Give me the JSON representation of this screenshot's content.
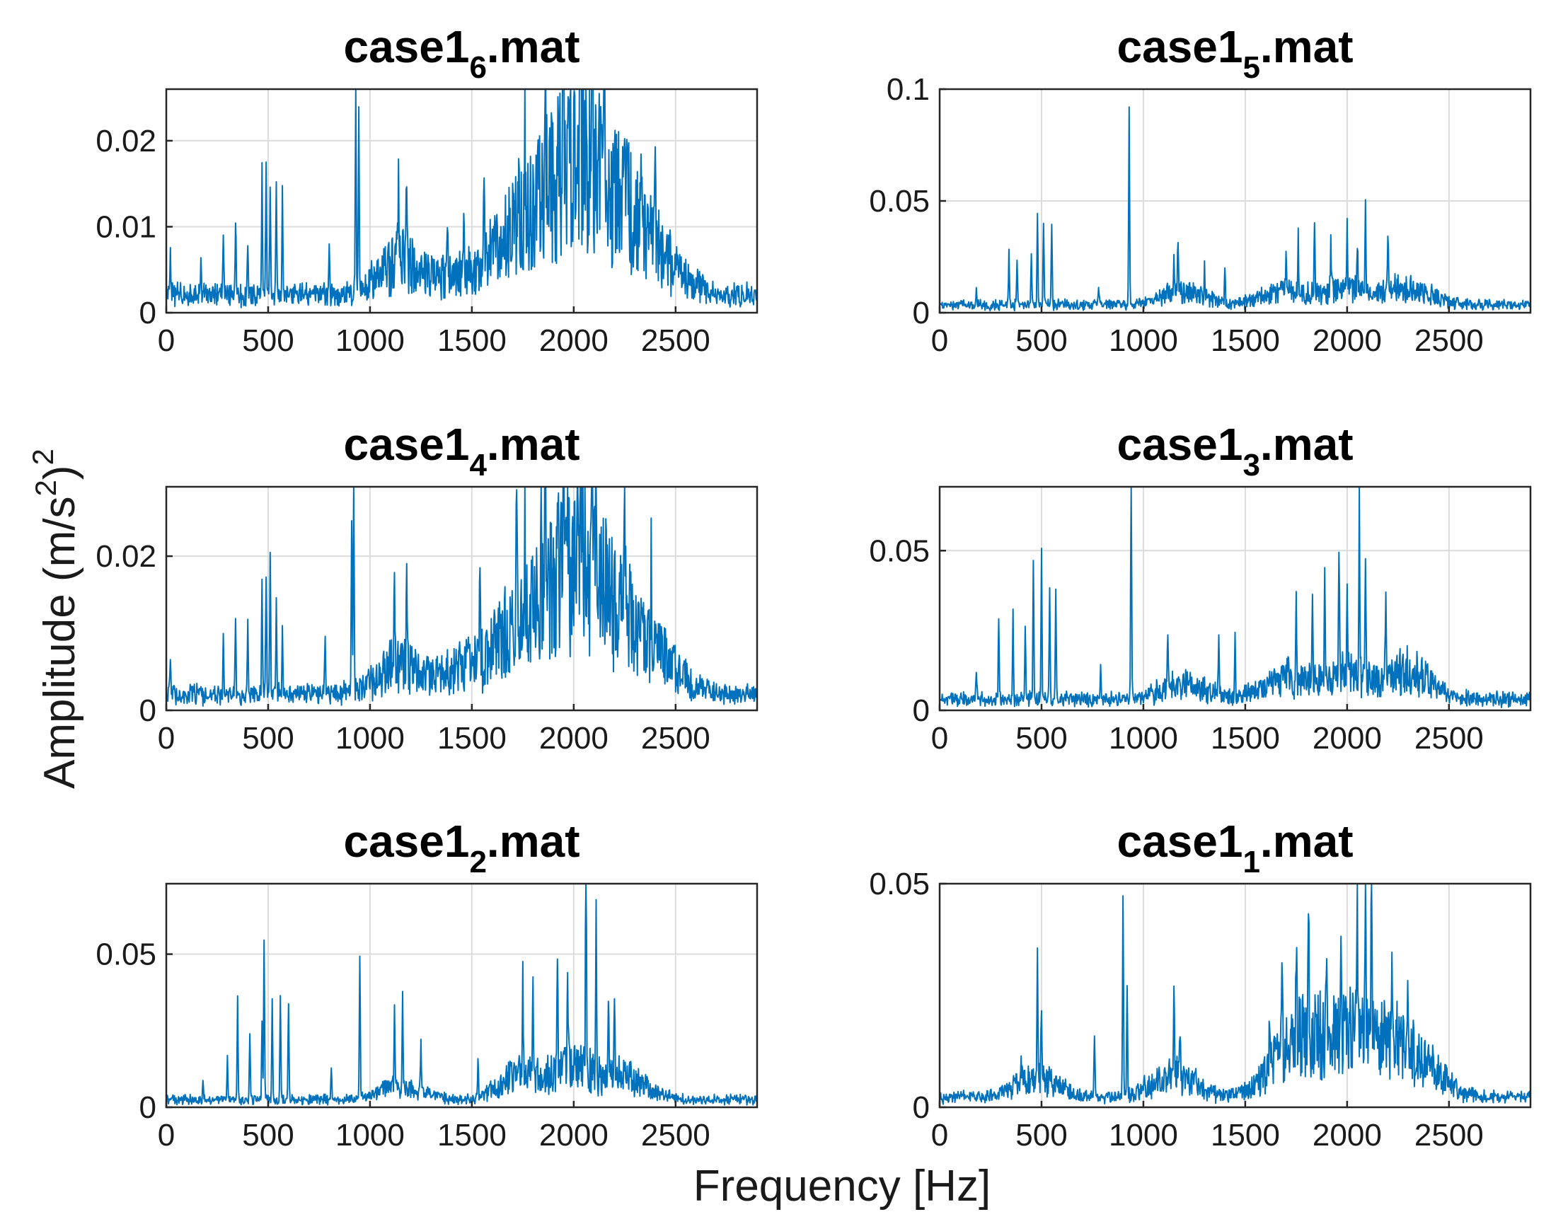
{
  "figure": {
    "xlabel": "Frequency [Hz]",
    "ylabel": "Amplitude (m/s",
    "ylabel_sup1": "2",
    "ylabel_close": ")",
    "ylabel_sup2": "2"
  },
  "colors": {
    "signal": "#0072bd",
    "grid": "#dcdcdc",
    "frame": "#262626"
  },
  "chart_data": [
    {
      "type": "line",
      "title_prefix": "case1",
      "title_sub": "6",
      "title_suffix": ".mat",
      "xlim": [
        0,
        2900
      ],
      "ylim": [
        0,
        0.026
      ],
      "xticks": [
        0,
        500,
        1000,
        1500,
        2000,
        2500
      ],
      "xticklabels": [
        "0",
        "500",
        "1000",
        "1500",
        "2000",
        "2500"
      ],
      "yticks": [
        0,
        0.01,
        0.02
      ],
      "yticklabels": [
        "0",
        "0.01",
        "0.02"
      ],
      "floor": 0.0015,
      "noise": 0.0012,
      "bands": [
        [
          1150,
          0.004
        ],
        [
          1450,
          0.002
        ],
        [
          1700,
          0.006
        ],
        [
          1900,
          0.008
        ],
        [
          2050,
          0.012
        ],
        [
          2250,
          0.008
        ],
        [
          2450,
          0.003
        ]
      ],
      "peaks": [
        [
          20,
          0.005
        ],
        [
          170,
          0.004
        ],
        [
          280,
          0.006
        ],
        [
          340,
          0.0095
        ],
        [
          400,
          0.006
        ],
        [
          470,
          0.015
        ],
        [
          490,
          0.016
        ],
        [
          510,
          0.013
        ],
        [
          540,
          0.0125
        ],
        [
          570,
          0.012
        ],
        [
          800,
          0.006
        ],
        [
          930,
          0.026
        ],
        [
          945,
          0.022
        ],
        [
          1140,
          0.011
        ],
        [
          1180,
          0.0115
        ],
        [
          1380,
          0.0075
        ],
        [
          1460,
          0.009
        ],
        [
          1560,
          0.01
        ],
        [
          1730,
          0.013
        ],
        [
          1760,
          0.0135
        ],
        [
          1860,
          0.022
        ],
        [
          1950,
          0.013
        ],
        [
          2030,
          0.021
        ],
        [
          2090,
          0.0225
        ],
        [
          2150,
          0.017
        ],
        [
          2330,
          0.0135
        ],
        [
          2400,
          0.01
        ]
      ],
      "series": [
        {
          "name": "case1_6",
          "x": [],
          "y": []
        }
      ]
    },
    {
      "type": "line",
      "title_prefix": "case1",
      "title_sub": "5",
      "title_suffix": ".mat",
      "xlim": [
        0,
        2900
      ],
      "ylim": [
        0,
        0.1
      ],
      "xticks": [
        0,
        500,
        1000,
        1500,
        2000,
        2500
      ],
      "xticklabels": [
        "0",
        "500",
        "1000",
        "1500",
        "2000",
        "2500"
      ],
      "yticks": [
        0,
        0.05,
        0.1
      ],
      "yticklabels": [
        "0",
        "0.05",
        "0.1"
      ],
      "floor": 0.002,
      "noise": 0.003,
      "bands": [
        [
          1200,
          0.006
        ],
        [
          1700,
          0.006
        ],
        [
          2000,
          0.007
        ],
        [
          2300,
          0.008
        ]
      ],
      "peaks": [
        [
          180,
          0.007
        ],
        [
          340,
          0.023
        ],
        [
          380,
          0.02
        ],
        [
          450,
          0.022
        ],
        [
          480,
          0.041
        ],
        [
          510,
          0.037
        ],
        [
          550,
          0.035
        ],
        [
          780,
          0.008
        ],
        [
          930,
          0.089
        ],
        [
          1150,
          0.02
        ],
        [
          1170,
          0.027
        ],
        [
          1300,
          0.015
        ],
        [
          1400,
          0.016
        ],
        [
          1700,
          0.02
        ],
        [
          1760,
          0.025
        ],
        [
          1840,
          0.032
        ],
        [
          1920,
          0.022
        ],
        [
          2000,
          0.027
        ],
        [
          2050,
          0.021
        ],
        [
          2090,
          0.039
        ],
        [
          2200,
          0.025
        ]
      ],
      "series": [
        {
          "name": "case1_5",
          "x": [],
          "y": []
        }
      ]
    },
    {
      "type": "line",
      "title_prefix": "case1",
      "title_sub": "4",
      "title_suffix": ".mat",
      "xlim": [
        0,
        2900
      ],
      "ylim": [
        0,
        0.029
      ],
      "xticks": [
        0,
        500,
        1000,
        1500,
        2000,
        2500
      ],
      "xticklabels": [
        "0",
        "500",
        "1000",
        "1500",
        "2000",
        "2500"
      ],
      "yticks": [
        0,
        0.02
      ],
      "yticklabels": [
        "0",
        "0.02"
      ],
      "floor": 0.0015,
      "noise": 0.0012,
      "bands": [
        [
          1150,
          0.004
        ],
        [
          1450,
          0.003
        ],
        [
          1700,
          0.007
        ],
        [
          1900,
          0.009
        ],
        [
          2050,
          0.012
        ],
        [
          2250,
          0.008
        ],
        [
          2450,
          0.003
        ]
      ],
      "peaks": [
        [
          20,
          0.005
        ],
        [
          280,
          0.008
        ],
        [
          340,
          0.0095
        ],
        [
          400,
          0.009
        ],
        [
          470,
          0.015
        ],
        [
          490,
          0.0155
        ],
        [
          510,
          0.018
        ],
        [
          540,
          0.0115
        ],
        [
          570,
          0.008
        ],
        [
          780,
          0.008
        ],
        [
          910,
          0.022
        ],
        [
          920,
          0.029
        ],
        [
          1120,
          0.0115
        ],
        [
          1180,
          0.011
        ],
        [
          1540,
          0.0135
        ],
        [
          1720,
          0.0195
        ],
        [
          1760,
          0.015
        ],
        [
          1840,
          0.018
        ],
        [
          1860,
          0.0235
        ],
        [
          1950,
          0.018
        ],
        [
          2020,
          0.02
        ],
        [
          2090,
          0.029
        ],
        [
          2110,
          0.025
        ],
        [
          2250,
          0.0135
        ],
        [
          2380,
          0.011
        ]
      ],
      "series": [
        {
          "name": "case1_4",
          "x": [],
          "y": []
        }
      ]
    },
    {
      "type": "line",
      "title_prefix": "case1",
      "title_sub": "3",
      "title_suffix": ".mat",
      "xlim": [
        0,
        2900
      ],
      "ylim": [
        0,
        0.07
      ],
      "xticks": [
        0,
        500,
        1000,
        1500,
        2000,
        2500
      ],
      "xticklabels": [
        "0",
        "500",
        "1000",
        "1500",
        "2000",
        "2500"
      ],
      "yticks": [
        0,
        0.05
      ],
      "yticklabels": [
        "0",
        "0.05"
      ],
      "floor": 0.002,
      "noise": 0.003,
      "bands": [
        [
          1200,
          0.005
        ],
        [
          1700,
          0.007
        ],
        [
          2000,
          0.008
        ],
        [
          2300,
          0.009
        ]
      ],
      "peaks": [
        [
          180,
          0.009
        ],
        [
          290,
          0.025
        ],
        [
          360,
          0.026
        ],
        [
          420,
          0.023
        ],
        [
          460,
          0.043
        ],
        [
          500,
          0.046
        ],
        [
          540,
          0.034
        ],
        [
          570,
          0.034
        ],
        [
          790,
          0.01
        ],
        [
          940,
          0.07
        ],
        [
          1120,
          0.02
        ],
        [
          1370,
          0.019
        ],
        [
          1450,
          0.02
        ],
        [
          1750,
          0.026
        ],
        [
          1830,
          0.023
        ],
        [
          1890,
          0.036
        ],
        [
          1960,
          0.035
        ],
        [
          2000,
          0.03
        ],
        [
          2060,
          0.054
        ],
        [
          2090,
          0.042
        ],
        [
          2190,
          0.025
        ]
      ],
      "series": [
        {
          "name": "case1_3",
          "x": [],
          "y": []
        }
      ]
    },
    {
      "type": "line",
      "title_prefix": "case1",
      "title_sub": "2",
      "title_suffix": ".mat",
      "xlim": [
        0,
        2900
      ],
      "ylim": [
        0,
        0.073
      ],
      "xticks": [
        0,
        500,
        1000,
        1500,
        2000,
        2500
      ],
      "xticklabels": [
        "0",
        "500",
        "1000",
        "1500",
        "2000",
        "2500"
      ],
      "yticks": [
        0,
        0.05
      ],
      "yticklabels": [
        "0",
        "0.05"
      ],
      "floor": 0.0015,
      "noise": 0.002,
      "bands": [
        [
          1150,
          0.004
        ],
        [
          1750,
          0.008
        ],
        [
          2000,
          0.01
        ],
        [
          2250,
          0.007
        ]
      ],
      "peaks": [
        [
          180,
          0.007
        ],
        [
          300,
          0.015
        ],
        [
          350,
          0.032
        ],
        [
          410,
          0.022
        ],
        [
          470,
          0.026
        ],
        [
          480,
          0.052
        ],
        [
          520,
          0.033
        ],
        [
          560,
          0.034
        ],
        [
          600,
          0.032
        ],
        [
          810,
          0.011
        ],
        [
          950,
          0.046
        ],
        [
          1120,
          0.025
        ],
        [
          1160,
          0.029
        ],
        [
          1250,
          0.016
        ],
        [
          1530,
          0.012
        ],
        [
          1750,
          0.032
        ],
        [
          1800,
          0.027
        ],
        [
          1920,
          0.039
        ],
        [
          1970,
          0.036
        ],
        [
          2060,
          0.073
        ],
        [
          2110,
          0.053
        ],
        [
          2170,
          0.025
        ],
        [
          2200,
          0.02
        ]
      ],
      "series": [
        {
          "name": "case1_2",
          "x": [],
          "y": []
        }
      ]
    },
    {
      "type": "line",
      "title_prefix": "case1",
      "title_sub": "1",
      "title_suffix": ".mat",
      "xlim": [
        0,
        2900
      ],
      "ylim": [
        0,
        0.05
      ],
      "xticks": [
        0,
        500,
        1000,
        1500,
        2000,
        2500
      ],
      "xticklabels": [
        "0",
        "500",
        "1000",
        "1500",
        "2000",
        "2500"
      ],
      "yticks": [
        0,
        0.05
      ],
      "yticklabels": [
        "0",
        "0.05"
      ],
      "floor": 0.0015,
      "noise": 0.0015,
      "bands": [
        [
          480,
          0.004
        ],
        [
          1150,
          0.005
        ],
        [
          1700,
          0.008
        ],
        [
          1850,
          0.009
        ],
        [
          2050,
          0.012
        ],
        [
          2250,
          0.009
        ],
        [
          2400,
          0.004
        ]
      ],
      "peaks": [
        [
          400,
          0.008
        ],
        [
          480,
          0.026
        ],
        [
          500,
          0.015
        ],
        [
          760,
          0.014
        ],
        [
          900,
          0.045
        ],
        [
          920,
          0.026
        ],
        [
          1150,
          0.017
        ],
        [
          1180,
          0.011
        ],
        [
          1620,
          0.013
        ],
        [
          1680,
          0.02
        ],
        [
          1750,
          0.024
        ],
        [
          1810,
          0.03
        ],
        [
          1900,
          0.027
        ],
        [
          1970,
          0.024
        ],
        [
          2050,
          0.03
        ],
        [
          2090,
          0.046
        ],
        [
          2120,
          0.035
        ],
        [
          2220,
          0.026
        ],
        [
          2300,
          0.014
        ]
      ],
      "series": [
        {
          "name": "case1_1",
          "x": [],
          "y": []
        }
      ]
    }
  ]
}
